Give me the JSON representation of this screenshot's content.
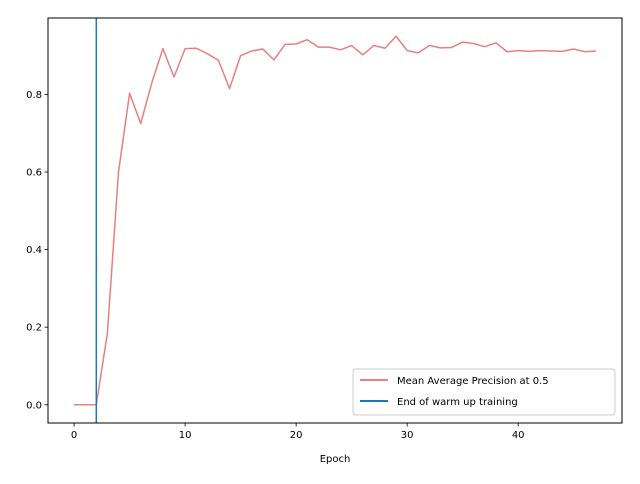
{
  "chart_data": {
    "type": "line",
    "title": "",
    "xlabel": "Epoch",
    "ylabel": "",
    "xlim": [
      -2.35,
      49.35
    ],
    "ylim": [
      -0.047,
      0.997
    ],
    "xticks": [
      0,
      10,
      20,
      30,
      40
    ],
    "yticks": [
      0.0,
      0.2,
      0.4,
      0.6,
      0.8
    ],
    "xtick_labels": [
      "0",
      "10",
      "20",
      "30",
      "40"
    ],
    "ytick_labels": [
      "0.0",
      "0.2",
      "0.4",
      "0.6",
      "0.8"
    ],
    "grid": false,
    "legend_position": "bottom-right",
    "series": [
      {
        "name": "Mean Average Precision at 0.5",
        "color": "#e88080",
        "x": [
          0,
          1,
          2,
          3,
          4,
          5,
          6,
          7,
          8,
          9,
          10,
          11,
          12,
          13,
          14,
          15,
          16,
          17,
          18,
          19,
          20,
          21,
          22,
          23,
          24,
          25,
          26,
          27,
          28,
          29,
          30,
          31,
          32,
          33,
          34,
          35,
          36,
          37,
          38,
          39,
          40,
          41,
          42,
          43,
          44,
          45,
          46,
          47
        ],
        "y": [
          0.0,
          0.0,
          0.0,
          0.185,
          0.6,
          0.803,
          0.725,
          0.83,
          0.918,
          0.845,
          0.918,
          0.919,
          0.905,
          0.888,
          0.815,
          0.9,
          0.912,
          0.917,
          0.889,
          0.929,
          0.93,
          0.941,
          0.922,
          0.922,
          0.915,
          0.926,
          0.902,
          0.926,
          0.919,
          0.95,
          0.913,
          0.907,
          0.926,
          0.92,
          0.921,
          0.935,
          0.931,
          0.923,
          0.933,
          0.91,
          0.913,
          0.911,
          0.913,
          0.912,
          0.911,
          0.917,
          0.91,
          0.912
        ]
      }
    ],
    "vlines": [
      {
        "name": "End of warm up training",
        "x": 2,
        "color": "#1f77b4"
      }
    ]
  }
}
